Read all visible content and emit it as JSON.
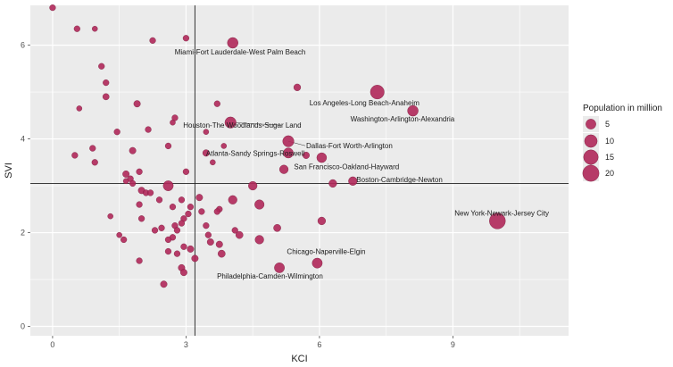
{
  "chart_data": {
    "type": "scatter",
    "xlabel": "KCI",
    "ylabel": "SVI",
    "xlim": [
      -0.5,
      11.6
    ],
    "ylim": [
      -0.2,
      6.85
    ],
    "xticks": [
      0,
      3,
      6,
      9
    ],
    "yticks": [
      0,
      2,
      4,
      6
    ],
    "grid": true,
    "vline": 3.2,
    "hline": 3.05,
    "marker_color": "#b0285a",
    "marker_edge": "#7a1e3e",
    "panel_color": "#ebebeb",
    "legend": {
      "title": "Population in million",
      "placement": "right",
      "sizes": [
        5,
        10,
        15,
        20
      ],
      "labels": [
        "5",
        "10",
        "15",
        "20"
      ]
    },
    "points": [
      {
        "x": 0.0,
        "y": 6.8,
        "size": 0.6
      },
      {
        "x": 0.55,
        "y": 6.35,
        "size": 0.6
      },
      {
        "x": 0.95,
        "y": 6.35,
        "size": 0.3
      },
      {
        "x": 2.25,
        "y": 6.1,
        "size": 0.6
      },
      {
        "x": 3.0,
        "y": 6.15,
        "size": 0.6
      },
      {
        "x": 4.05,
        "y": 6.05,
        "size": 6.0,
        "label": "Miami-Fort Lauderdale-West Palm Beach"
      },
      {
        "x": 1.1,
        "y": 5.55,
        "size": 0.6
      },
      {
        "x": 1.2,
        "y": 5.2,
        "size": 0.6
      },
      {
        "x": 1.2,
        "y": 4.9,
        "size": 0.8
      },
      {
        "x": 5.5,
        "y": 5.1,
        "size": 1.2
      },
      {
        "x": 7.3,
        "y": 5.0,
        "size": 13.0,
        "label": "Los Angeles-Long Beach-Anaheim"
      },
      {
        "x": 1.9,
        "y": 4.75,
        "size": 1.0
      },
      {
        "x": 3.7,
        "y": 4.75,
        "size": 0.6
      },
      {
        "x": 0.6,
        "y": 4.65,
        "size": 0.3
      },
      {
        "x": 8.1,
        "y": 4.6,
        "size": 6.0,
        "label": "Washington-Arlington-Alexandria"
      },
      {
        "x": 2.75,
        "y": 4.45,
        "size": 0.6
      },
      {
        "x": 2.7,
        "y": 4.35,
        "size": 0.3
      },
      {
        "x": 4.0,
        "y": 4.35,
        "size": 7.0,
        "label": "Houston-The Woodlands-Sugar Land"
      },
      {
        "x": 2.15,
        "y": 4.2,
        "size": 0.6
      },
      {
        "x": 1.45,
        "y": 4.15,
        "size": 0.6
      },
      {
        "x": 3.45,
        "y": 4.15,
        "size": 0.3
      },
      {
        "x": 5.3,
        "y": 3.95,
        "size": 7.0,
        "label": "Dallas-Fort Worth-Arlington"
      },
      {
        "x": 3.85,
        "y": 3.85,
        "size": 0.3
      },
      {
        "x": 2.6,
        "y": 3.85,
        "size": 0.6
      },
      {
        "x": 0.9,
        "y": 3.8,
        "size": 0.6
      },
      {
        "x": 1.8,
        "y": 3.75,
        "size": 1.0
      },
      {
        "x": 3.45,
        "y": 3.7,
        "size": 1.0,
        "label": "Atlanta-Sandy Springs-Roswell"
      },
      {
        "x": 5.3,
        "y": 3.7,
        "size": 5.0
      },
      {
        "x": 0.5,
        "y": 3.65,
        "size": 0.6
      },
      {
        "x": 5.7,
        "y": 3.65,
        "size": 1.0
      },
      {
        "x": 6.05,
        "y": 3.6,
        "size": 4.5,
        "label": "San Francisco-Oakland-Hayward"
      },
      {
        "x": 3.6,
        "y": 3.5,
        "size": 0.3
      },
      {
        "x": 0.95,
        "y": 3.5,
        "size": 0.6
      },
      {
        "x": 5.2,
        "y": 3.35,
        "size": 3.0
      },
      {
        "x": 1.95,
        "y": 3.3,
        "size": 0.6
      },
      {
        "x": 1.65,
        "y": 3.25,
        "size": 1.0
      },
      {
        "x": 3.0,
        "y": 3.3,
        "size": 0.6
      },
      {
        "x": 1.75,
        "y": 3.15,
        "size": 0.6
      },
      {
        "x": 6.75,
        "y": 3.1,
        "size": 3.0,
        "label": "Boston-Cambridge-Newton"
      },
      {
        "x": 1.65,
        "y": 3.1,
        "size": 0.3
      },
      {
        "x": 6.3,
        "y": 3.05,
        "size": 2.0
      },
      {
        "x": 1.8,
        "y": 3.05,
        "size": 0.6
      },
      {
        "x": 2.6,
        "y": 3.0,
        "size": 5.0
      },
      {
        "x": 4.5,
        "y": 3.0,
        "size": 3.0
      },
      {
        "x": 2.0,
        "y": 2.9,
        "size": 1.0
      },
      {
        "x": 2.1,
        "y": 2.85,
        "size": 0.6
      },
      {
        "x": 2.2,
        "y": 2.85,
        "size": 0.6
      },
      {
        "x": 3.3,
        "y": 2.75,
        "size": 1.0
      },
      {
        "x": 4.05,
        "y": 2.7,
        "size": 3.0
      },
      {
        "x": 2.4,
        "y": 2.7,
        "size": 0.6
      },
      {
        "x": 2.9,
        "y": 2.7,
        "size": 0.6
      },
      {
        "x": 4.65,
        "y": 2.6,
        "size": 4.0
      },
      {
        "x": 1.95,
        "y": 2.6,
        "size": 0.6
      },
      {
        "x": 2.7,
        "y": 2.55,
        "size": 0.6
      },
      {
        "x": 3.1,
        "y": 2.55,
        "size": 0.6
      },
      {
        "x": 3.75,
        "y": 2.5,
        "size": 0.6
      },
      {
        "x": 3.35,
        "y": 2.45,
        "size": 0.6
      },
      {
        "x": 3.7,
        "y": 2.45,
        "size": 0.6
      },
      {
        "x": 3.05,
        "y": 2.4,
        "size": 0.6
      },
      {
        "x": 1.3,
        "y": 2.35,
        "size": 0.3
      },
      {
        "x": 2.0,
        "y": 2.3,
        "size": 0.6
      },
      {
        "x": 2.95,
        "y": 2.3,
        "size": 0.6
      },
      {
        "x": 10.0,
        "y": 2.25,
        "size": 19.0,
        "label": "New York-Newark-Jersey City"
      },
      {
        "x": 6.05,
        "y": 2.25,
        "size": 2.0
      },
      {
        "x": 2.9,
        "y": 2.2,
        "size": 0.6
      },
      {
        "x": 3.45,
        "y": 2.15,
        "size": 0.6
      },
      {
        "x": 2.75,
        "y": 2.15,
        "size": 0.6
      },
      {
        "x": 5.05,
        "y": 2.1,
        "size": 1.5
      },
      {
        "x": 2.45,
        "y": 2.1,
        "size": 0.6
      },
      {
        "x": 4.1,
        "y": 2.05,
        "size": 0.6
      },
      {
        "x": 2.3,
        "y": 2.05,
        "size": 0.6
      },
      {
        "x": 2.8,
        "y": 2.05,
        "size": 0.6
      },
      {
        "x": 1.5,
        "y": 1.95,
        "size": 0.3
      },
      {
        "x": 4.2,
        "y": 1.95,
        "size": 1.5
      },
      {
        "x": 3.5,
        "y": 1.95,
        "size": 0.6
      },
      {
        "x": 2.7,
        "y": 1.9,
        "size": 0.6
      },
      {
        "x": 4.65,
        "y": 1.85,
        "size": 3.0
      },
      {
        "x": 2.6,
        "y": 1.85,
        "size": 0.6
      },
      {
        "x": 3.55,
        "y": 1.8,
        "size": 1.0
      },
      {
        "x": 1.6,
        "y": 1.85,
        "size": 0.6
      },
      {
        "x": 3.75,
        "y": 1.75,
        "size": 1.0
      },
      {
        "x": 2.95,
        "y": 1.7,
        "size": 0.6
      },
      {
        "x": 3.1,
        "y": 1.65,
        "size": 1.0
      },
      {
        "x": 2.6,
        "y": 1.6,
        "size": 0.6
      },
      {
        "x": 2.8,
        "y": 1.55,
        "size": 0.6
      },
      {
        "x": 3.8,
        "y": 1.55,
        "size": 1.5
      },
      {
        "x": 3.2,
        "y": 1.45,
        "size": 1.0
      },
      {
        "x": 1.95,
        "y": 1.4,
        "size": 0.6
      },
      {
        "x": 5.95,
        "y": 1.35,
        "size": 5.0,
        "label": "Chicago-Naperville-Elgin"
      },
      {
        "x": 2.9,
        "y": 1.25,
        "size": 1.0
      },
      {
        "x": 5.1,
        "y": 1.25,
        "size": 5.0,
        "label": "Philadelphia-Camden-Wilmington"
      },
      {
        "x": 2.95,
        "y": 1.15,
        "size": 1.0
      },
      {
        "x": 2.5,
        "y": 0.9,
        "size": 1.0
      }
    ]
  }
}
